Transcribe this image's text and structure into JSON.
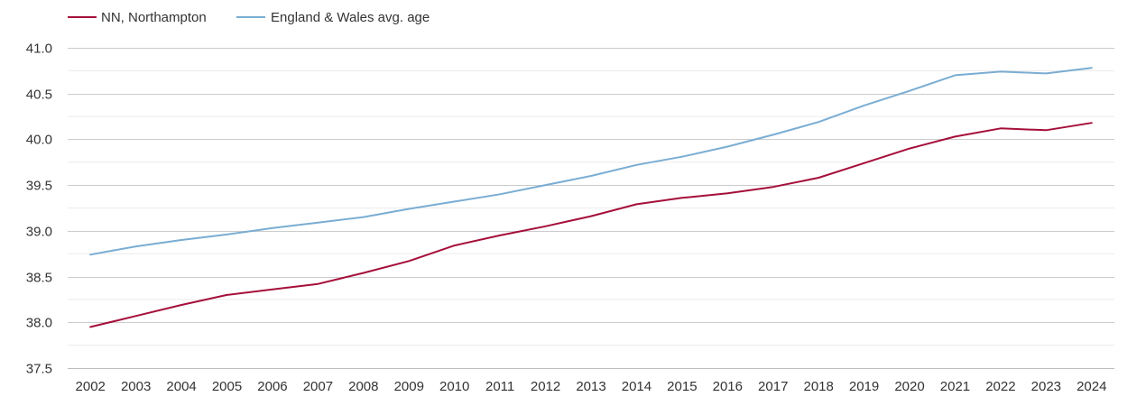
{
  "chart_data": {
    "type": "line",
    "title": "",
    "xlabel": "",
    "ylabel": "",
    "x": [
      "2002",
      "2003",
      "2004",
      "2005",
      "2006",
      "2007",
      "2008",
      "2009",
      "2010",
      "2011",
      "2012",
      "2013",
      "2014",
      "2015",
      "2016",
      "2017",
      "2018",
      "2019",
      "2020",
      "2021",
      "2022",
      "2023",
      "2024"
    ],
    "ylim": [
      37.5,
      41.0
    ],
    "yticks": [
      "37.5",
      "38.0",
      "38.5",
      "39.0",
      "39.5",
      "40.0",
      "40.5",
      "41.0"
    ],
    "grid": true,
    "legend_position": "top-left",
    "series": [
      {
        "name": "NN, Northampton",
        "color": "#a50f3a",
        "values": [
          37.95,
          38.07,
          38.19,
          38.3,
          38.36,
          38.42,
          38.54,
          38.67,
          38.84,
          38.95,
          39.05,
          39.16,
          39.29,
          39.36,
          39.41,
          39.48,
          39.58,
          39.74,
          39.9,
          40.03,
          40.12,
          40.1,
          40.18
        ]
      },
      {
        "name": "England & Wales avg. age",
        "color": "#7aadd3",
        "values": [
          38.74,
          38.83,
          38.9,
          38.96,
          39.03,
          39.09,
          39.15,
          39.24,
          39.32,
          39.4,
          39.5,
          39.6,
          39.72,
          39.81,
          39.92,
          40.05,
          40.19,
          40.37,
          40.53,
          40.7,
          40.74,
          40.72,
          40.78
        ]
      }
    ]
  }
}
